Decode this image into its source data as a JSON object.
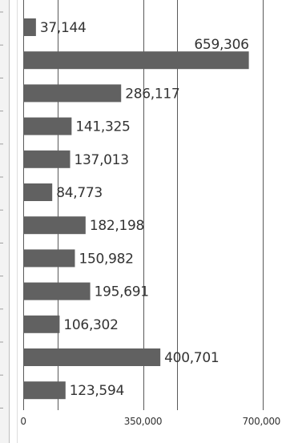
{
  "chart_data": {
    "type": "bar",
    "orientation": "horizontal",
    "values": [
      37144,
      659306,
      286117,
      141325,
      137013,
      84773,
      182198,
      150982,
      195691,
      106302,
      400701,
      123594
    ],
    "value_labels": [
      "37,144",
      "659,306",
      "286,117",
      "141,325",
      "137,013",
      "84,773",
      "182,198",
      "150,982",
      "195,691",
      "106,302",
      "400,701",
      "123,594"
    ],
    "x_ticks": [
      {
        "value": 0,
        "label": "0"
      },
      {
        "value": 350000,
        "label": "350,000"
      },
      {
        "value": 700000,
        "label": "700,000"
      }
    ],
    "xlim": [
      0,
      700000
    ],
    "grid": true,
    "bar_color": "#616161"
  }
}
